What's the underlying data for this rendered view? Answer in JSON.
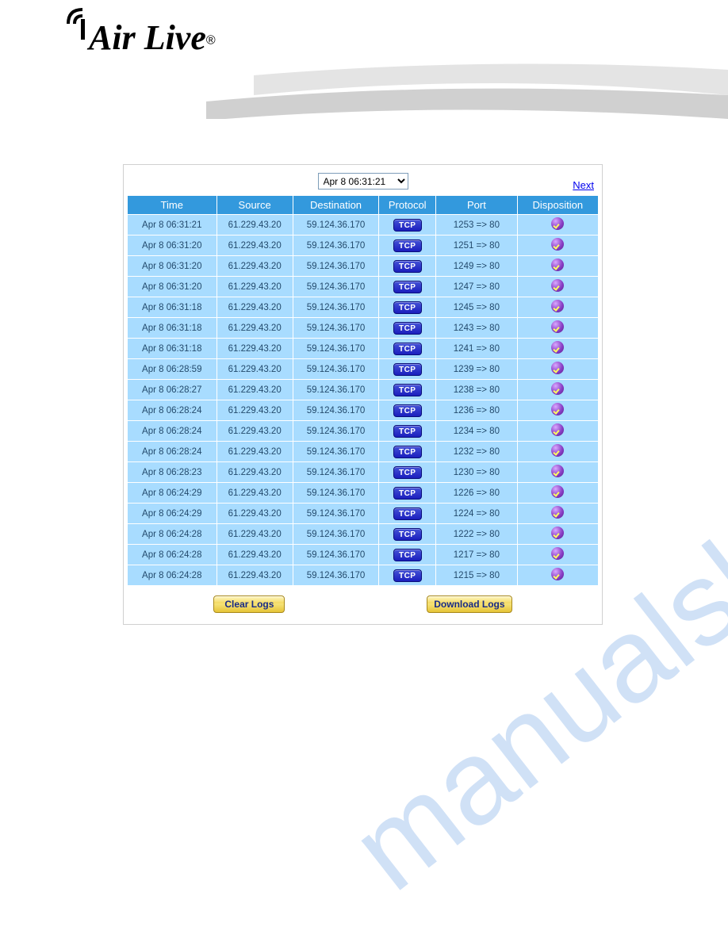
{
  "brand": {
    "name": "Air Live",
    "registered": "®"
  },
  "watermark": "manualshine.com",
  "controls": {
    "time_selected": "Apr 8 06:31:21",
    "next_label": "Next",
    "clear_button": "Clear Logs",
    "download_button": "Download Logs"
  },
  "table": {
    "headers": {
      "time": "Time",
      "source": "Source",
      "destination": "Destination",
      "protocol": "Protocol",
      "port": "Port",
      "disposition": "Disposition"
    },
    "protocol_badge": "TCP",
    "colors": {
      "header_bg": "#3399dd",
      "header_fg": "#ffffff",
      "cell_bg": "#a8dcff",
      "cell_fg": "#234a6c",
      "badge_bg_top": "#4452d6",
      "badge_bg_bottom": "#1a1ebe"
    },
    "rows": [
      {
        "time": "Apr 8 06:31:21",
        "src": "61.229.43.20",
        "dst": "59.124.36.170",
        "port": "1253 => 80"
      },
      {
        "time": "Apr 8 06:31:20",
        "src": "61.229.43.20",
        "dst": "59.124.36.170",
        "port": "1251 => 80"
      },
      {
        "time": "Apr 8 06:31:20",
        "src": "61.229.43.20",
        "dst": "59.124.36.170",
        "port": "1249 => 80"
      },
      {
        "time": "Apr 8 06:31:20",
        "src": "61.229.43.20",
        "dst": "59.124.36.170",
        "port": "1247 => 80"
      },
      {
        "time": "Apr 8 06:31:18",
        "src": "61.229.43.20",
        "dst": "59.124.36.170",
        "port": "1245 => 80"
      },
      {
        "time": "Apr 8 06:31:18",
        "src": "61.229.43.20",
        "dst": "59.124.36.170",
        "port": "1243 => 80"
      },
      {
        "time": "Apr 8 06:31:18",
        "src": "61.229.43.20",
        "dst": "59.124.36.170",
        "port": "1241 => 80"
      },
      {
        "time": "Apr 8 06:28:59",
        "src": "61.229.43.20",
        "dst": "59.124.36.170",
        "port": "1239 => 80"
      },
      {
        "time": "Apr 8 06:28:27",
        "src": "61.229.43.20",
        "dst": "59.124.36.170",
        "port": "1238 => 80"
      },
      {
        "time": "Apr 8 06:28:24",
        "src": "61.229.43.20",
        "dst": "59.124.36.170",
        "port": "1236 => 80"
      },
      {
        "time": "Apr 8 06:28:24",
        "src": "61.229.43.20",
        "dst": "59.124.36.170",
        "port": "1234 => 80"
      },
      {
        "time": "Apr 8 06:28:24",
        "src": "61.229.43.20",
        "dst": "59.124.36.170",
        "port": "1232 => 80"
      },
      {
        "time": "Apr 8 06:28:23",
        "src": "61.229.43.20",
        "dst": "59.124.36.170",
        "port": "1230 => 80"
      },
      {
        "time": "Apr 8 06:24:29",
        "src": "61.229.43.20",
        "dst": "59.124.36.170",
        "port": "1226 => 80"
      },
      {
        "time": "Apr 8 06:24:29",
        "src": "61.229.43.20",
        "dst": "59.124.36.170",
        "port": "1224 => 80"
      },
      {
        "time": "Apr 8 06:24:28",
        "src": "61.229.43.20",
        "dst": "59.124.36.170",
        "port": "1222 => 80"
      },
      {
        "time": "Apr 8 06:24:28",
        "src": "61.229.43.20",
        "dst": "59.124.36.170",
        "port": "1217 => 80"
      },
      {
        "time": "Apr 8 06:24:28",
        "src": "61.229.43.20",
        "dst": "59.124.36.170",
        "port": "1215 => 80"
      }
    ]
  }
}
